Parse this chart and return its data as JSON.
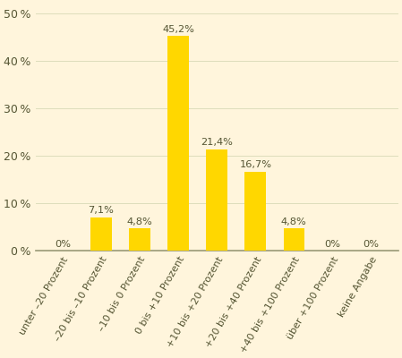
{
  "categories": [
    "unter –20 Prozent",
    "–20 bis –10 Prozent",
    "–10 bis 0 Prozent",
    "0 bis +10 Prozent",
    "+10 bis +20 Prozent",
    "+20 bis +40 Prozent",
    "+40 bis +100 Prozent",
    "über +100 Prozent",
    "keine Angabe"
  ],
  "values": [
    0.0,
    7.1,
    4.8,
    45.2,
    21.4,
    16.7,
    4.8,
    0.0,
    0.0
  ],
  "bar_color": "#FFD700",
  "background_color": "#FFF5DC",
  "ylim": [
    0,
    52
  ],
  "yticks": [
    0,
    10,
    20,
    30,
    40,
    50
  ],
  "ytick_labels": [
    "0 %",
    "10 %",
    "20 %",
    "30 %",
    "40 %",
    "50 %"
  ],
  "value_labels": [
    "0%",
    "7,1%",
    "4,8%",
    "45,2%",
    "21,4%",
    "16,7%",
    "4,8%",
    "0%",
    "0%"
  ],
  "grid_color": "#DDDDBB",
  "bottom_spine_color": "#999977",
  "text_color": "#555533",
  "label_fontsize": 8.0,
  "value_fontsize": 8.2,
  "tick_fontsize": 9.0,
  "bar_width": 0.55
}
